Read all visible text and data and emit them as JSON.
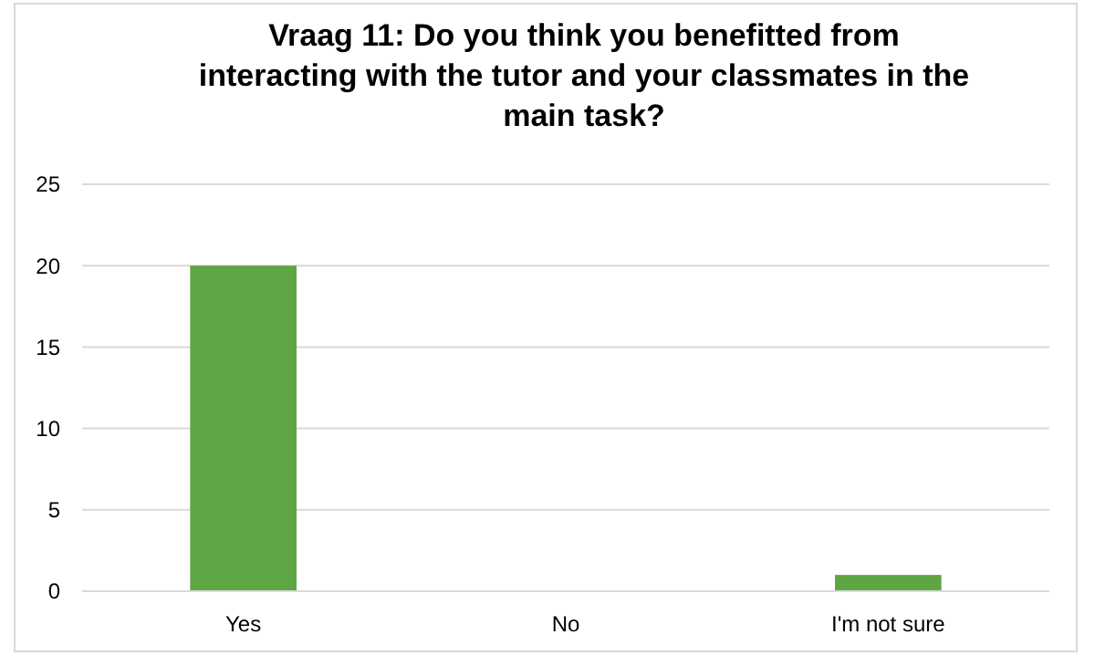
{
  "chart_data": {
    "type": "bar",
    "title": "Vraag 11: Do you think you benefitted from interacting with the tutor and your classmates in the main task?",
    "categories": [
      "Yes",
      "No",
      "I'm not sure"
    ],
    "values": [
      20,
      0,
      1
    ],
    "color": "#5ea544",
    "ylim": [
      0,
      25
    ],
    "yticks": [
      0,
      5,
      10,
      15,
      20,
      25
    ],
    "grid": "y"
  }
}
